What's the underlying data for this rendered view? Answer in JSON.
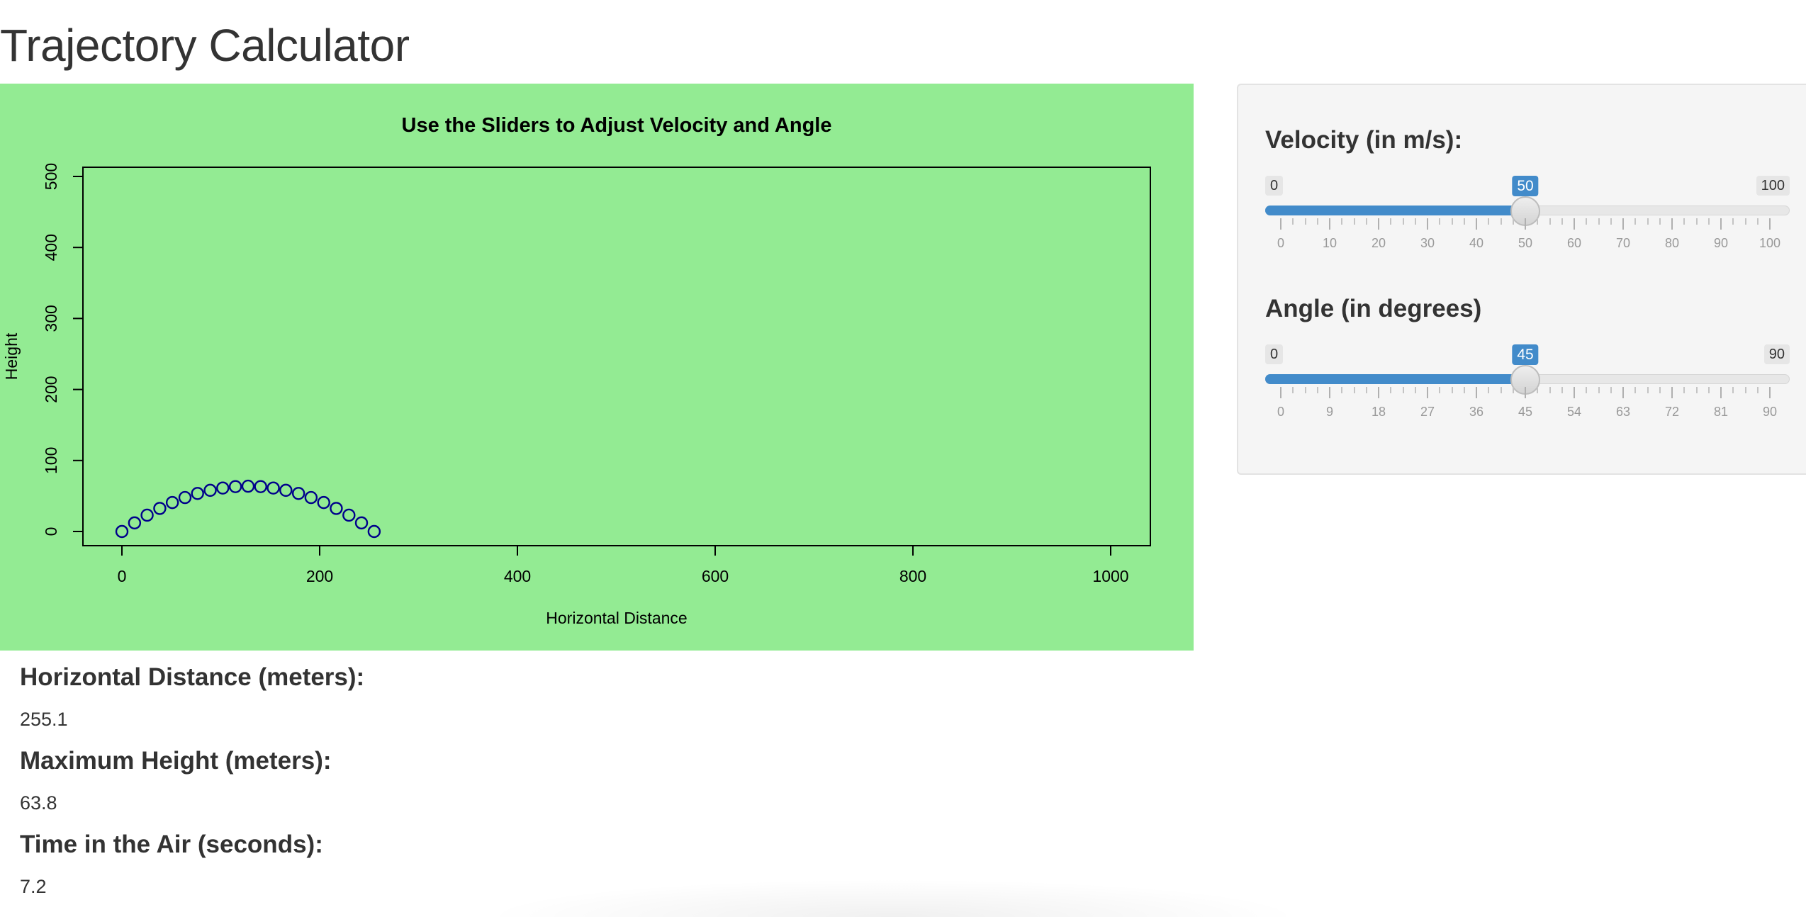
{
  "page": {
    "title": "Trajectory Calculator"
  },
  "chart_data": {
    "type": "scatter",
    "title": "Use the Sliders to Adjust Velocity and Angle",
    "xlabel": "Horizontal Distance",
    "ylabel": "Height",
    "xlim": [
      0,
      1000
    ],
    "ylim": [
      0,
      500
    ],
    "xticks": [
      0,
      200,
      400,
      600,
      800,
      1000
    ],
    "yticks": [
      0,
      100,
      200,
      300,
      400,
      500
    ],
    "background_color": "#93eb93",
    "marker_color": "#00008b",
    "series": [
      {
        "x": [
          0,
          12.8,
          25.5,
          38.3,
          51.0,
          63.8,
          76.5,
          89.3,
          102.0,
          114.8,
          127.6,
          140.3,
          153.1,
          165.8,
          178.6,
          191.3,
          204.1,
          216.8,
          229.6,
          242.3,
          255.1
        ],
        "y": [
          0,
          12.1,
          23.0,
          32.5,
          40.8,
          47.8,
          53.6,
          58.0,
          61.2,
          63.2,
          63.8,
          63.2,
          61.2,
          58.0,
          53.6,
          47.8,
          40.8,
          32.5,
          23.0,
          12.1,
          0
        ]
      }
    ]
  },
  "controls": {
    "velocity": {
      "label": "Velocity (in m/s):",
      "min": 0,
      "max": 100,
      "value": 50,
      "min_label": "0",
      "max_label": "100",
      "value_label": "50",
      "tick_labels": [
        "0",
        "10",
        "20",
        "30",
        "40",
        "50",
        "60",
        "70",
        "80",
        "90",
        "100"
      ]
    },
    "angle": {
      "label": "Angle (in degrees)",
      "min": 0,
      "max": 90,
      "value": 45,
      "min_label": "0",
      "max_label": "90",
      "value_label": "45",
      "tick_labels": [
        "0",
        "9",
        "18",
        "27",
        "36",
        "45",
        "54",
        "63",
        "72",
        "81",
        "90"
      ]
    },
    "accent_color": "#428bca"
  },
  "outputs": {
    "distance": {
      "label": "Horizontal Distance (meters):",
      "value": "255.1"
    },
    "height": {
      "label": "Maximum Height (meters):",
      "value": "63.8"
    },
    "time": {
      "label": "Time in the Air (seconds):",
      "value": "7.2"
    }
  }
}
